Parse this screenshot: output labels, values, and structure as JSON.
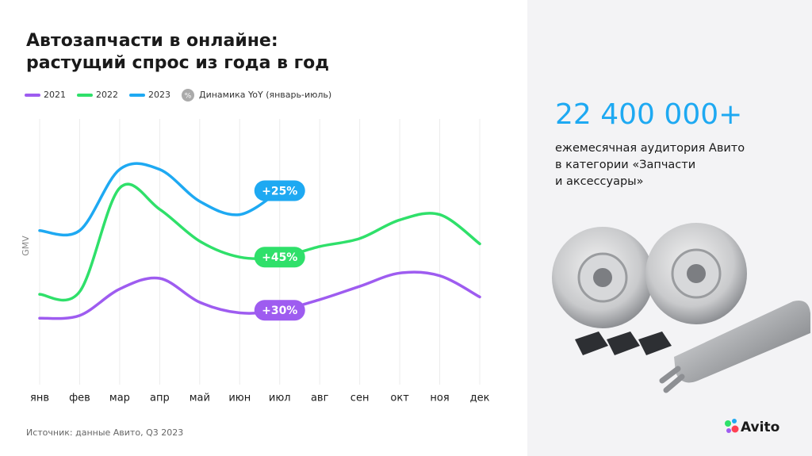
{
  "chart_data": {
    "type": "line",
    "title": [
      "Автозапчасти в онлайне:",
      "растущий спрос из года в год"
    ],
    "y_label": "GMV",
    "categories": [
      "янв",
      "фев",
      "мар",
      "апр",
      "май",
      "июн",
      "июл",
      "авг",
      "сен",
      "окт",
      "ноя",
      "дек"
    ],
    "series": [
      {
        "name": "2021",
        "color": "#9e5cf0",
        "values": [
          25,
          26,
          36,
          40,
          31,
          27,
          28,
          32,
          37,
          42,
          41,
          33
        ]
      },
      {
        "name": "2022",
        "color": "#2fe06a",
        "values": [
          34,
          35,
          74,
          66,
          54,
          48,
          48,
          52,
          55,
          62,
          64,
          53
        ]
      },
      {
        "name": "2023",
        "color": "#1ea9f2",
        "values": [
          58,
          58,
          81,
          81,
          69,
          64,
          73,
          null,
          null,
          null,
          null,
          null
        ]
      }
    ],
    "ylim": [
      0,
      100
    ],
    "grid": "x",
    "legend_note": {
      "icon": "%",
      "label": "Динамика YoY (январь-июль)"
    },
    "annotations": [
      {
        "series": 2,
        "category": 6,
        "text": "+25%"
      },
      {
        "series": 1,
        "category": 6,
        "text": "+45%"
      },
      {
        "series": 0,
        "category": 6,
        "text": "+30%"
      }
    ],
    "source": "Источник: данные Авито, Q3 2023"
  },
  "side_panel": {
    "headline": "22 400 000+",
    "description": [
      "ежемесячная аудитория Авито",
      "в категории «Запчасти",
      "и аксессуары»"
    ],
    "logo": "Avito"
  }
}
